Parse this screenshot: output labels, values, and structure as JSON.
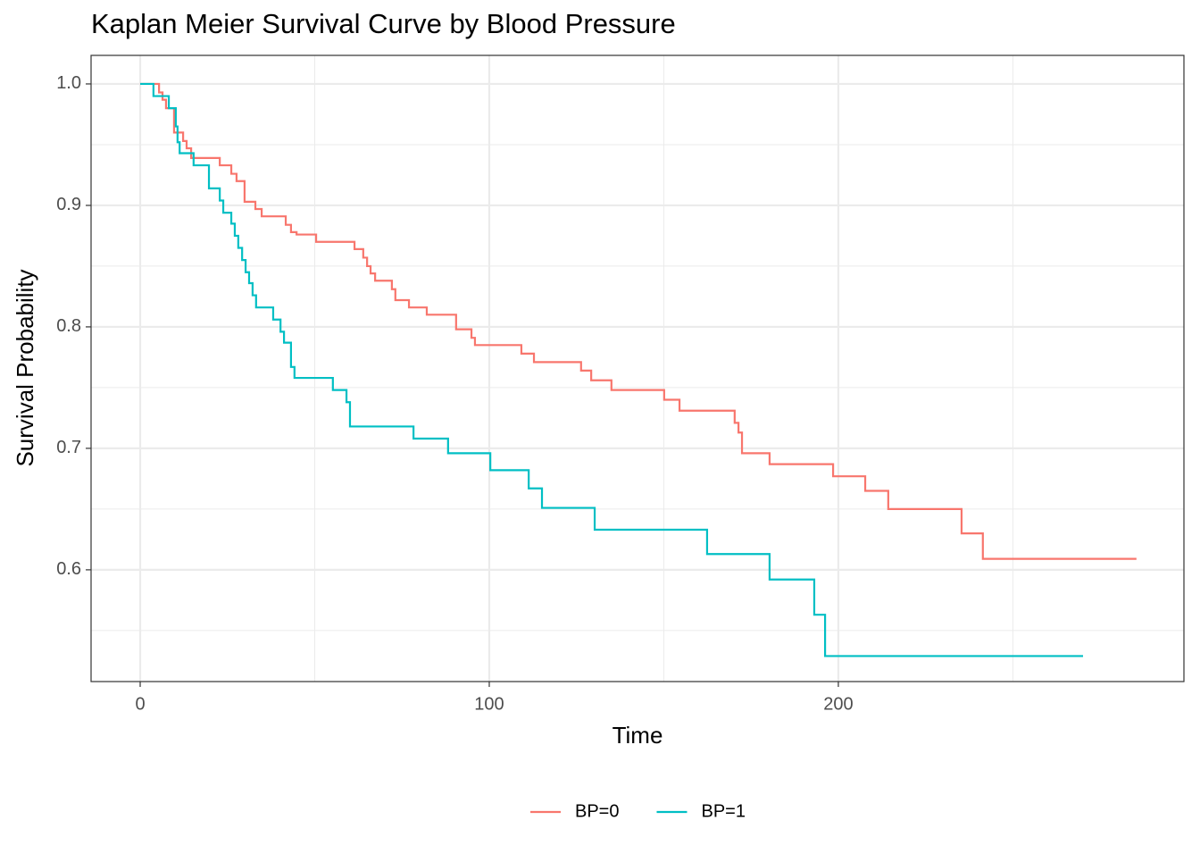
{
  "chart_data": {
    "type": "step",
    "title": "Kaplan Meier Survival Curve by Blood Pressure",
    "x_label": "Time",
    "y_label": "Survival Probability",
    "xlim": [
      -14.07,
      299.0
    ],
    "ylim": [
      0.508,
      1.0235
    ],
    "xticks": [
      0,
      100,
      200
    ],
    "yticks": [
      0.6,
      0.7,
      0.8,
      0.9,
      {
        "value": 1,
        "label": "1.0"
      }
    ],
    "grid": true,
    "legend": "bottom",
    "series": [
      {
        "name": "BP=0",
        "color": "#f8766d",
        "x": [
          0,
          5.4,
          6.4,
          7.4,
          9.7,
          12.3,
          13.3,
          14.6,
          22.8,
          26.1,
          27.6,
          29.9,
          33,
          34.8,
          41.7,
          43.2,
          44.8,
          50.4,
          61.4,
          63.9,
          65,
          66,
          67.3,
          72.1,
          73.1,
          77,
          82.1,
          90.5,
          94.9,
          95.9,
          109.2,
          112.8,
          126.3,
          129.2,
          135,
          150.1,
          154.5,
          170.3,
          171.4,
          172.4,
          180.3,
          198.5,
          207.7,
          214.3,
          235.3,
          241.4,
          285.4
        ],
        "values": [
          1,
          0.993,
          0.987,
          0.98,
          0.96,
          0.953,
          0.947,
          0.939,
          0.933,
          0.926,
          0.92,
          0.903,
          0.897,
          0.891,
          0.884,
          0.878,
          0.876,
          0.87,
          0.864,
          0.857,
          0.85,
          0.844,
          0.838,
          0.831,
          0.822,
          0.816,
          0.81,
          0.798,
          0.791,
          0.785,
          0.778,
          0.771,
          0.764,
          0.756,
          0.748,
          0.74,
          0.731,
          0.721,
          0.713,
          0.696,
          0.687,
          0.677,
          0.665,
          0.65,
          0.63,
          0.609,
          0.609
        ]
      },
      {
        "name": "BP=1",
        "color": "#00bfc4",
        "x": [
          0,
          3.8,
          8.2,
          10.2,
          10.7,
          11.3,
          15.3,
          19.7,
          22.8,
          23.8,
          26.1,
          27.1,
          28.1,
          29.2,
          30.2,
          31.2,
          32.2,
          33.2,
          38.1,
          40.2,
          41.2,
          43.2,
          44.2,
          55.2,
          59.1,
          60.1,
          78.3,
          88.2,
          100.3,
          111.3,
          115.1,
          130.2,
          162.4,
          180.3,
          193.1,
          196.2,
          270.1
        ],
        "values": [
          1,
          0.99,
          0.98,
          0.965,
          0.952,
          0.943,
          0.933,
          0.914,
          0.904,
          0.894,
          0.885,
          0.875,
          0.865,
          0.855,
          0.845,
          0.836,
          0.826,
          0.816,
          0.806,
          0.796,
          0.787,
          0.767,
          0.758,
          0.748,
          0.738,
          0.718,
          0.708,
          0.696,
          0.682,
          0.667,
          0.651,
          0.633,
          0.613,
          0.592,
          0.563,
          0.529,
          0.529
        ]
      }
    ]
  }
}
